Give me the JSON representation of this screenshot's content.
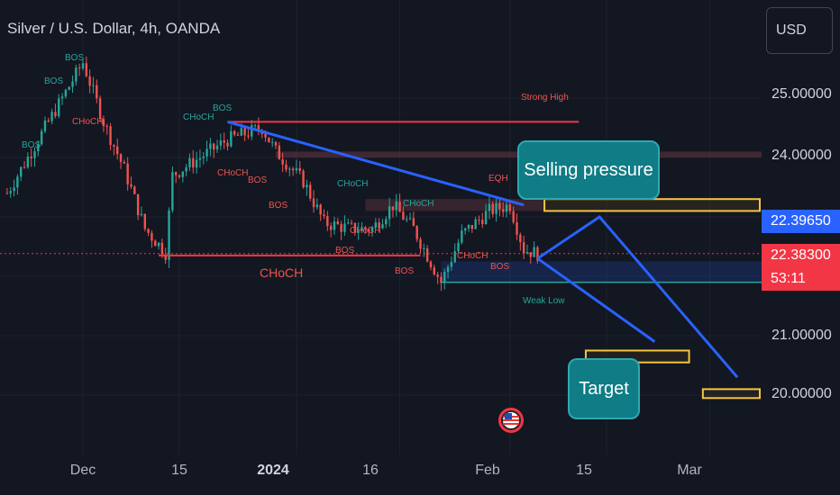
{
  "header": {
    "title": "Silver / U.S. Dollar, 4h, OANDA",
    "currency_button": "USD"
  },
  "price_axis": {
    "ticks": [
      "25.00000",
      "24.00000",
      "21.00000",
      "20.00000"
    ],
    "current_bid_label": "22.39650",
    "current_price_label": "22.38300",
    "countdown_label": "53:11",
    "bid_color": "#2962ff",
    "price_color": "#f23645"
  },
  "time_axis": {
    "ticks": [
      "Dec",
      "15",
      "2024",
      "16",
      "Feb",
      "15",
      "Mar"
    ]
  },
  "annotations": {
    "selling_pressure": "Selling pressure",
    "target": "Target",
    "strong_high": "Strong High",
    "weak_low": "Weak Low",
    "choch_main": "CHoCH",
    "eqh": "EQH",
    "smc_labels": [
      {
        "text": "BOS",
        "color": "teal"
      },
      {
        "text": "BOS",
        "color": "teal"
      },
      {
        "text": "BOS",
        "color": "teal"
      },
      {
        "text": "CHoCH",
        "color": "red"
      },
      {
        "text": "CHoCH",
        "color": "teal"
      },
      {
        "text": "BOS",
        "color": "teal"
      },
      {
        "text": "CHoCH",
        "color": "red"
      },
      {
        "text": "BOS",
        "color": "red"
      },
      {
        "text": "BOS",
        "color": "red"
      },
      {
        "text": "CHoCH",
        "color": "teal"
      },
      {
        "text": "CHoCH",
        "color": "red"
      },
      {
        "text": "BOS",
        "color": "red"
      },
      {
        "text": "CHoCH",
        "color": "teal"
      },
      {
        "text": "BOS",
        "color": "red"
      },
      {
        "text": "CHoCH",
        "color": "red"
      },
      {
        "text": "BOS",
        "color": "red"
      }
    ]
  },
  "chart_data": {
    "type": "candlestick",
    "symbol": "XAGUSD",
    "timeframe": "4h",
    "y_range": [
      19.0,
      26.5
    ],
    "price_path": [
      [
        "2023-11-20",
        23.4
      ],
      [
        "2023-11-24",
        24.2
      ],
      [
        "2023-11-28",
        25.0
      ],
      [
        "2023-12-01",
        25.6
      ],
      [
        "2023-12-04",
        24.6
      ],
      [
        "2023-12-07",
        23.8
      ],
      [
        "2023-12-10",
        22.8
      ],
      [
        "2023-12-13",
        22.4
      ],
      [
        "2023-12-14",
        23.7
      ],
      [
        "2023-12-18",
        24.0
      ],
      [
        "2023-12-22",
        24.3
      ],
      [
        "2023-12-27",
        24.5
      ],
      [
        "2023-12-29",
        24.1
      ],
      [
        "2024-01-02",
        23.6
      ],
      [
        "2024-01-05",
        22.9
      ],
      [
        "2024-01-09",
        22.8
      ],
      [
        "2024-01-12",
        22.8
      ],
      [
        "2024-01-15",
        23.2
      ],
      [
        "2024-01-18",
        22.8
      ],
      [
        "2024-01-22",
        21.9
      ],
      [
        "2024-01-25",
        22.7
      ],
      [
        "2024-01-29",
        23.1
      ],
      [
        "2024-02-01",
        23.2
      ],
      [
        "2024-02-03",
        22.45
      ],
      [
        "2024-02-05",
        22.38
      ]
    ],
    "levels": {
      "strong_high": 24.6,
      "supply_zone": [
        24.0,
        24.1
      ],
      "selling_pressure_zone": [
        23.1,
        23.3
      ],
      "demand_zone": [
        21.9,
        22.25
      ],
      "target_zone_1": [
        20.55,
        20.75
      ],
      "target_zone_2": [
        19.95,
        20.1
      ]
    },
    "projection": [
      [
        "2024-02-05",
        22.3
      ],
      [
        "2024-02-14",
        23.0
      ],
      [
        "2024-03-05",
        20.3
      ]
    ],
    "projection_2": [
      [
        "2024-02-05",
        22.3
      ],
      [
        "2024-02-22",
        20.9
      ]
    ],
    "current_price": 22.383
  }
}
